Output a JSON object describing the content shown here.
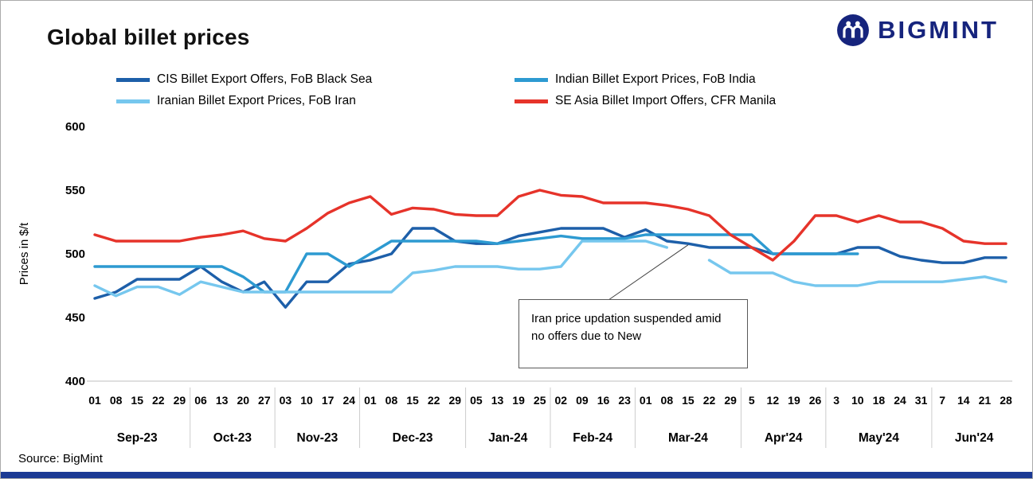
{
  "title": "Global billet prices",
  "logo": {
    "text": "BIGMINT"
  },
  "source": "Source: BigMint",
  "annotation": {
    "text": "Iran price updation suspended amid no offers due to New"
  },
  "chart_data": {
    "type": "line",
    "title": "Global billet prices",
    "ylabel": "Prices in $/t",
    "ylim": [
      400,
      600
    ],
    "yticks": [
      400,
      450,
      500,
      550,
      600
    ],
    "grid": false,
    "legend_position": "top",
    "x_dates": [
      "01",
      "08",
      "15",
      "22",
      "29",
      "06",
      "13",
      "20",
      "27",
      "03",
      "10",
      "17",
      "24",
      "01",
      "08",
      "15",
      "22",
      "29",
      "05",
      "13",
      "19",
      "25",
      "02",
      "09",
      "16",
      "23",
      "01",
      "08",
      "15",
      "22",
      "29",
      "5",
      "12",
      "19",
      "26",
      "3",
      "10",
      "18",
      "24",
      "31",
      "7",
      "14",
      "21",
      "28"
    ],
    "month_groups": [
      {
        "label": "Sep-23",
        "count": 5
      },
      {
        "label": "Oct-23",
        "count": 4
      },
      {
        "label": "Nov-23",
        "count": 4
      },
      {
        "label": "Dec-23",
        "count": 5
      },
      {
        "label": "Jan-24",
        "count": 4
      },
      {
        "label": "Feb-24",
        "count": 4
      },
      {
        "label": "Mar-24",
        "count": 5
      },
      {
        "label": "Apr'24",
        "count": 4
      },
      {
        "label": "May'24",
        "count": 5
      },
      {
        "label": "Jun'24",
        "count": 4
      }
    ],
    "series": [
      {
        "name": "CIS Billet Export Offers, FoB Black Sea",
        "color": "#1d5fa9",
        "values": [
          465,
          470,
          480,
          480,
          480,
          490,
          478,
          470,
          478,
          458,
          478,
          478,
          492,
          495,
          500,
          520,
          520,
          510,
          508,
          508,
          514,
          517,
          520,
          520,
          520,
          513,
          519,
          510,
          508,
          505,
          505,
          505,
          500,
          500,
          500,
          500,
          505,
          505,
          498,
          495,
          493,
          493,
          497,
          497
        ]
      },
      {
        "name": "Indian Billet Export Prices, FoB India",
        "color": "#2d9ad1",
        "values": [
          490,
          490,
          490,
          490,
          490,
          490,
          490,
          482,
          470,
          470,
          500,
          500,
          490,
          500,
          510,
          510,
          510,
          510,
          510,
          508,
          510,
          512,
          514,
          512,
          512,
          512,
          515,
          515,
          515,
          515,
          515,
          515,
          500,
          500,
          500,
          500,
          500,
          null,
          null,
          null,
          null,
          null,
          null,
          null
        ]
      },
      {
        "name": "Iranian Billet Export Prices, FoB Iran",
        "color": "#76c7ee",
        "values": [
          475,
          467,
          474,
          474,
          468,
          478,
          474,
          470,
          470,
          470,
          470,
          470,
          470,
          470,
          470,
          485,
          487,
          490,
          490,
          490,
          488,
          488,
          490,
          510,
          510,
          510,
          510,
          505,
          null,
          495,
          485,
          485,
          485,
          478,
          475,
          475,
          475,
          478,
          478,
          478,
          478,
          480,
          482,
          478
        ]
      },
      {
        "name": "SE Asia Billet Import Offers, CFR Manila",
        "color": "#e6332a",
        "values": [
          515,
          510,
          510,
          510,
          510,
          513,
          515,
          518,
          512,
          510,
          520,
          532,
          540,
          545,
          531,
          536,
          535,
          531,
          530,
          530,
          545,
          550,
          546,
          545,
          540,
          540,
          540,
          538,
          535,
          530,
          515,
          505,
          495,
          510,
          530,
          530,
          525,
          530,
          525,
          525,
          520,
          510,
          508,
          508
        ]
      }
    ],
    "annotation": {
      "text": "Iran price updation suspended amid no offers due to New",
      "points_to": {
        "x_index": 28,
        "value": 507
      }
    }
  }
}
